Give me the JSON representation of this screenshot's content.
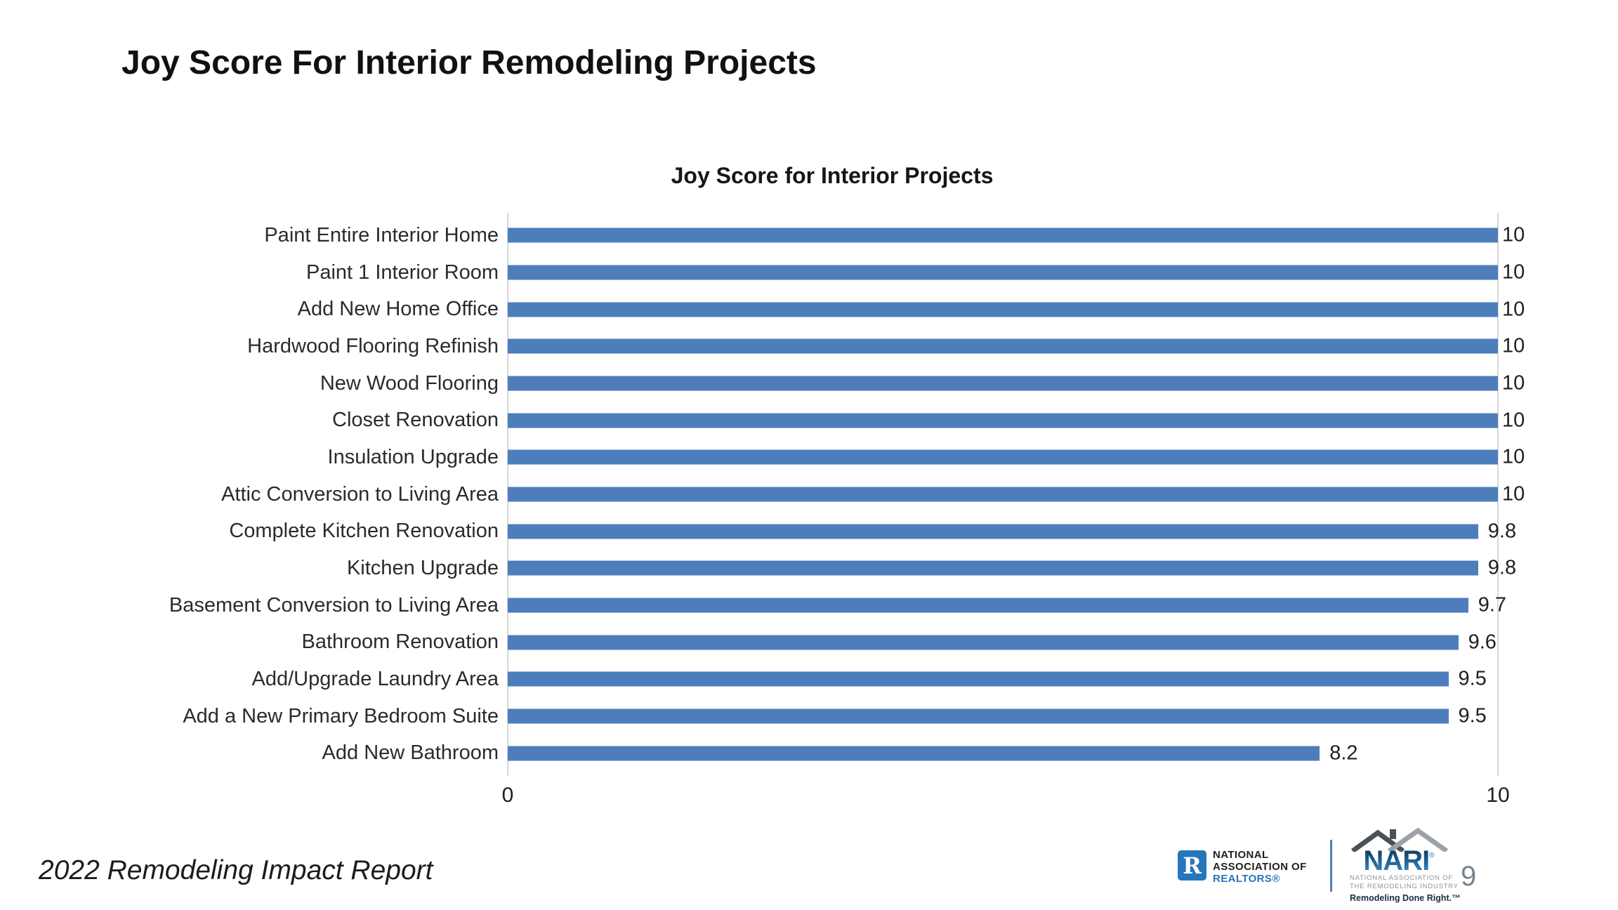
{
  "slide": {
    "title": "Joy Score For Interior Remodeling Projects"
  },
  "chart_data": {
    "type": "bar",
    "orientation": "horizontal",
    "title": "Joy Score for Interior Projects",
    "categories": [
      "Paint Entire Interior Home",
      "Paint 1 Interior Room",
      "Add New Home Office",
      "Hardwood Flooring Refinish",
      "New Wood Flooring",
      "Closet Renovation",
      "Insulation Upgrade",
      "Attic Conversion to Living Area",
      "Complete Kitchen Renovation",
      "Kitchen Upgrade",
      "Basement Conversion to Living Area",
      "Bathroom Renovation",
      "Add/Upgrade Laundry Area",
      "Add a New Primary Bedroom Suite",
      "Add New Bathroom"
    ],
    "values": [
      10,
      10,
      10,
      10,
      10,
      10,
      10,
      10,
      9.8,
      9.8,
      9.7,
      9.6,
      9.5,
      9.5,
      8.2
    ],
    "xlabel": "",
    "ylabel": "",
    "xlim": [
      0,
      10
    ],
    "x_ticks": [
      "0",
      "10"
    ],
    "bar_color": "#4D7EBB",
    "gridline_color": "#D9D9D9",
    "grid": "vertical line at 0 and 10 only",
    "legend_position": "none",
    "value_labels_shown": true
  },
  "footer": {
    "report_title": "2022 Remodeling Impact Report",
    "page_number": "9"
  },
  "logos": {
    "nar": {
      "r_letter": "R",
      "line1": "NATIONAL",
      "line2": "ASSOCIATION OF",
      "line3": "REALTORS®",
      "blue": "#2776BD"
    },
    "nari": {
      "name": "NARI",
      "reg": "®",
      "line1": "NATIONAL ASSOCIATION OF",
      "line2": "THE REMODELING INDUSTRY",
      "tagline": "Remodeling Done Right.™"
    }
  }
}
